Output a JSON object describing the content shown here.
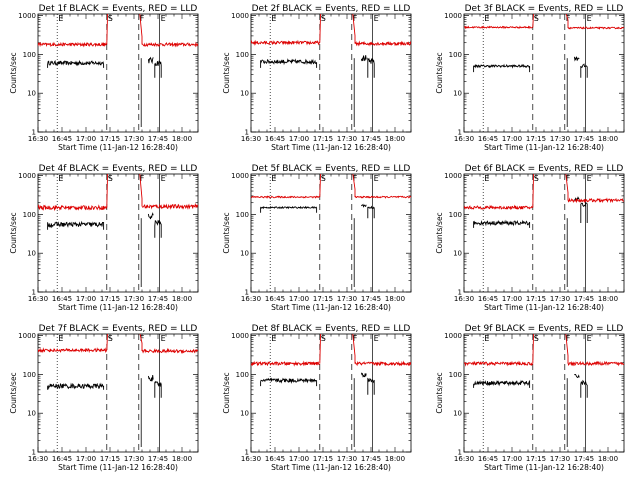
{
  "figure": {
    "background": "#ffffff"
  },
  "shared": {
    "xlabel": "Start Time (11-Jan-12 16:28:40)",
    "ylabel": "Counts/sec",
    "x_tick_labels": [
      "16:30",
      "16:45",
      "17:00",
      "17:15",
      "17:30",
      "17:45",
      "18:00"
    ],
    "x_tick_minutes": [
      90,
      105,
      120,
      135,
      150,
      165,
      180
    ],
    "y_tick_labels": [
      "1",
      "10",
      "100",
      "1000"
    ],
    "y_tick_values": [
      1,
      10,
      100,
      1000
    ],
    "xlim_minutes": [
      90,
      190
    ],
    "ylim": [
      1,
      1100
    ],
    "y_scale": "log",
    "series_colors": {
      "events": "#000000",
      "lld": "#dd0000"
    },
    "marker_labels": [
      "E",
      "S",
      "F",
      "E"
    ],
    "vline_minutes": {
      "e1": 102,
      "s": 133,
      "f": 153,
      "e2": 166
    }
  },
  "chart_data": [
    {
      "type": "line",
      "title": "Det 1f BLACK = Events, RED = LLD",
      "series": [
        {
          "key": "events",
          "segments": [
            {
              "x_start": 96,
              "x_end": 131,
              "level": 60,
              "noise": 0.05,
              "end_drop": 45
            },
            {
              "x_start": 159,
              "x_end": 162,
              "level": 70,
              "noise": 0.08
            },
            {
              "x_start": 163,
              "x_end": 167,
              "level": 60,
              "noise": 0.08,
              "end_drop": 25
            }
          ]
        },
        {
          "key": "lld",
          "segments": [
            {
              "x_start": 90,
              "x_end": 133,
              "level": 180,
              "noise": 0.04
            },
            {
              "x_start": 155,
              "x_end": 190,
              "level": 180,
              "noise": 0.04
            }
          ]
        }
      ]
    },
    {
      "type": "line",
      "title": "Det 2f BLACK = Events, RED = LLD",
      "series": [
        {
          "key": "events",
          "segments": [
            {
              "x_start": 96,
              "x_end": 131,
              "level": 65,
              "noise": 0.05,
              "end_drop": 45
            },
            {
              "x_start": 159,
              "x_end": 162,
              "level": 80,
              "noise": 0.08
            },
            {
              "x_start": 163,
              "x_end": 167,
              "level": 65,
              "noise": 0.08,
              "end_drop": 25
            }
          ]
        },
        {
          "key": "lld",
          "segments": [
            {
              "x_start": 90,
              "x_end": 133,
              "level": 200,
              "noise": 0.04
            },
            {
              "x_start": 155,
              "x_end": 190,
              "level": 190,
              "noise": 0.04
            }
          ]
        }
      ]
    },
    {
      "type": "line",
      "title": "Det 3f BLACK = Events, RED = LLD",
      "series": [
        {
          "key": "events",
          "segments": [
            {
              "x_start": 96,
              "x_end": 131,
              "level": 50,
              "noise": 0.03,
              "end_drop": 35
            },
            {
              "x_start": 159,
              "x_end": 162,
              "level": 80,
              "noise": 0.05
            },
            {
              "x_start": 163,
              "x_end": 167,
              "level": 50,
              "noise": 0.05,
              "end_drop": 25
            }
          ]
        },
        {
          "key": "lld",
          "segments": [
            {
              "x_start": 90,
              "x_end": 133,
              "level": 500,
              "noise": 0.02
            },
            {
              "x_start": 155,
              "x_end": 190,
              "level": 480,
              "noise": 0.02
            }
          ]
        }
      ]
    },
    {
      "type": "line",
      "title": "Det 4f BLACK = Events, RED = LLD",
      "series": [
        {
          "key": "events",
          "segments": [
            {
              "x_start": 96,
              "x_end": 131,
              "level": 55,
              "noise": 0.06,
              "end_drop": 40
            },
            {
              "x_start": 159,
              "x_end": 162,
              "level": 90,
              "noise": 0.08
            },
            {
              "x_start": 163,
              "x_end": 167,
              "level": 60,
              "noise": 0.08,
              "end_drop": 25
            }
          ]
        },
        {
          "key": "lld",
          "segments": [
            {
              "x_start": 90,
              "x_end": 133,
              "level": 150,
              "noise": 0.05
            },
            {
              "x_start": 155,
              "x_end": 190,
              "level": 160,
              "noise": 0.05
            }
          ]
        }
      ]
    },
    {
      "type": "line",
      "title": "Det 5f BLACK = Events, RED = LLD",
      "series": [
        {
          "key": "events",
          "segments": [
            {
              "x_start": 96,
              "x_end": 131,
              "level": 150,
              "noise": 0.02,
              "end_drop": 110
            },
            {
              "x_start": 159,
              "x_end": 162,
              "level": 170,
              "noise": 0.03
            },
            {
              "x_start": 163,
              "x_end": 167,
              "level": 150,
              "noise": 0.03,
              "end_drop": 80
            }
          ]
        },
        {
          "key": "lld",
          "segments": [
            {
              "x_start": 90,
              "x_end": 133,
              "level": 280,
              "noise": 0.02
            },
            {
              "x_start": 155,
              "x_end": 190,
              "level": 280,
              "noise": 0.02
            }
          ]
        }
      ]
    },
    {
      "type": "line",
      "title": "Det 6f BLACK = Events, RED = LLD",
      "series": [
        {
          "key": "events",
          "segments": [
            {
              "x_start": 96,
              "x_end": 131,
              "level": 60,
              "noise": 0.05,
              "end_drop": 45
            },
            {
              "x_start": 159,
              "x_end": 162,
              "level": 250,
              "noise": 0.05
            },
            {
              "x_start": 163,
              "x_end": 167,
              "level": 180,
              "noise": 0.05,
              "end_drop": 60
            }
          ]
        },
        {
          "key": "lld",
          "segments": [
            {
              "x_start": 90,
              "x_end": 133,
              "level": 150,
              "noise": 0.04
            },
            {
              "x_start": 155,
              "x_end": 190,
              "level": 230,
              "noise": 0.04
            }
          ]
        }
      ]
    },
    {
      "type": "line",
      "title": "Det 7f BLACK = Events, RED = LLD",
      "series": [
        {
          "key": "events",
          "segments": [
            {
              "x_start": 96,
              "x_end": 131,
              "level": 50,
              "noise": 0.06,
              "end_drop": 40
            },
            {
              "x_start": 159,
              "x_end": 162,
              "level": 80,
              "noise": 0.08
            },
            {
              "x_start": 163,
              "x_end": 167,
              "level": 55,
              "noise": 0.08,
              "end_drop": 25
            }
          ]
        },
        {
          "key": "lld",
          "segments": [
            {
              "x_start": 90,
              "x_end": 133,
              "level": 420,
              "noise": 0.04
            },
            {
              "x_start": 155,
              "x_end": 190,
              "level": 400,
              "noise": 0.04
            }
          ]
        }
      ]
    },
    {
      "type": "line",
      "title": "Det 8f BLACK = Events, RED = LLD",
      "series": [
        {
          "key": "events",
          "segments": [
            {
              "x_start": 96,
              "x_end": 131,
              "level": 70,
              "noise": 0.05,
              "end_drop": 50
            },
            {
              "x_start": 159,
              "x_end": 162,
              "level": 100,
              "noise": 0.06
            },
            {
              "x_start": 163,
              "x_end": 167,
              "level": 70,
              "noise": 0.06,
              "end_drop": 30
            }
          ]
        },
        {
          "key": "lld",
          "segments": [
            {
              "x_start": 90,
              "x_end": 133,
              "level": 190,
              "noise": 0.04
            },
            {
              "x_start": 155,
              "x_end": 190,
              "level": 190,
              "noise": 0.04
            }
          ]
        }
      ]
    },
    {
      "type": "line",
      "title": "Det 9f BLACK = Events, RED = LLD",
      "series": [
        {
          "key": "events",
          "segments": [
            {
              "x_start": 96,
              "x_end": 131,
              "level": 60,
              "noise": 0.05,
              "end_drop": 45
            },
            {
              "x_start": 159,
              "x_end": 162,
              "level": 90,
              "noise": 0.06
            },
            {
              "x_start": 163,
              "x_end": 167,
              "level": 60,
              "noise": 0.06,
              "end_drop": 25
            }
          ]
        },
        {
          "key": "lld",
          "segments": [
            {
              "x_start": 90,
              "x_end": 133,
              "level": 190,
              "noise": 0.04
            },
            {
              "x_start": 155,
              "x_end": 190,
              "level": 190,
              "noise": 0.04
            }
          ]
        }
      ]
    }
  ]
}
